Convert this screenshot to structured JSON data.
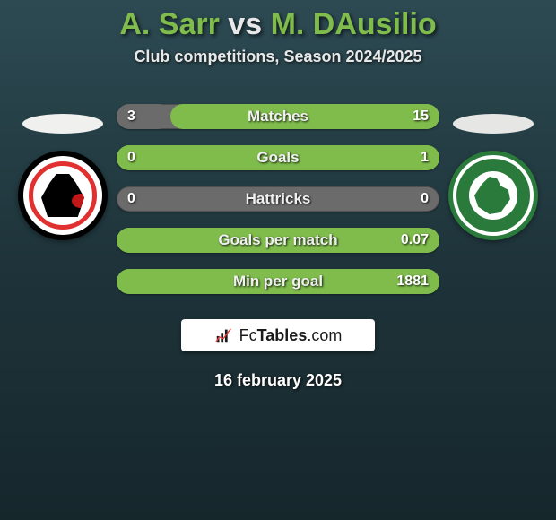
{
  "title": {
    "player1": "A. Sarr",
    "vs": "vs",
    "player2": "M. DAusilio"
  },
  "subtitle": "Club competitions, Season 2024/2025",
  "badges": {
    "left": {
      "name": "foggia-crest",
      "ellipse_color": "#f0f0ee",
      "outer_ring": "#000000",
      "inner_ring": "#e03030",
      "bg": "#ffffff"
    },
    "right": {
      "name": "avellino-crest",
      "ellipse_color": "#e6e7e5",
      "ring": "#2a7a3b",
      "bg": "#ffffff"
    }
  },
  "stats": {
    "bar_bg": "#6b6b6b",
    "bar_accent": "#7fbc4c",
    "text_color": "#f0f0f0",
    "rows": [
      {
        "label": "Matches",
        "left": "3",
        "right": "15",
        "left_pct": 16.7,
        "right_pct": 83.3
      },
      {
        "label": "Goals",
        "left": "0",
        "right": "1",
        "left_pct": 0,
        "right_pct": 100
      },
      {
        "label": "Hattricks",
        "left": "0",
        "right": "0",
        "left_pct": 50,
        "right_pct": 50,
        "neutral": true
      },
      {
        "label": "Goals per match",
        "left": "",
        "right": "0.07",
        "left_pct": 0,
        "right_pct": 100
      },
      {
        "label": "Min per goal",
        "left": "",
        "right": "1881",
        "left_pct": 0,
        "right_pct": 100
      }
    ]
  },
  "site_logo": {
    "text_prefix": "Fc",
    "text_bold": "Tables",
    "text_suffix": ".com"
  },
  "date": "16 february 2025",
  "colors": {
    "title_accent": "#7fbc4c",
    "background_top": "#2d4a53",
    "background_bottom": "#16272c"
  }
}
